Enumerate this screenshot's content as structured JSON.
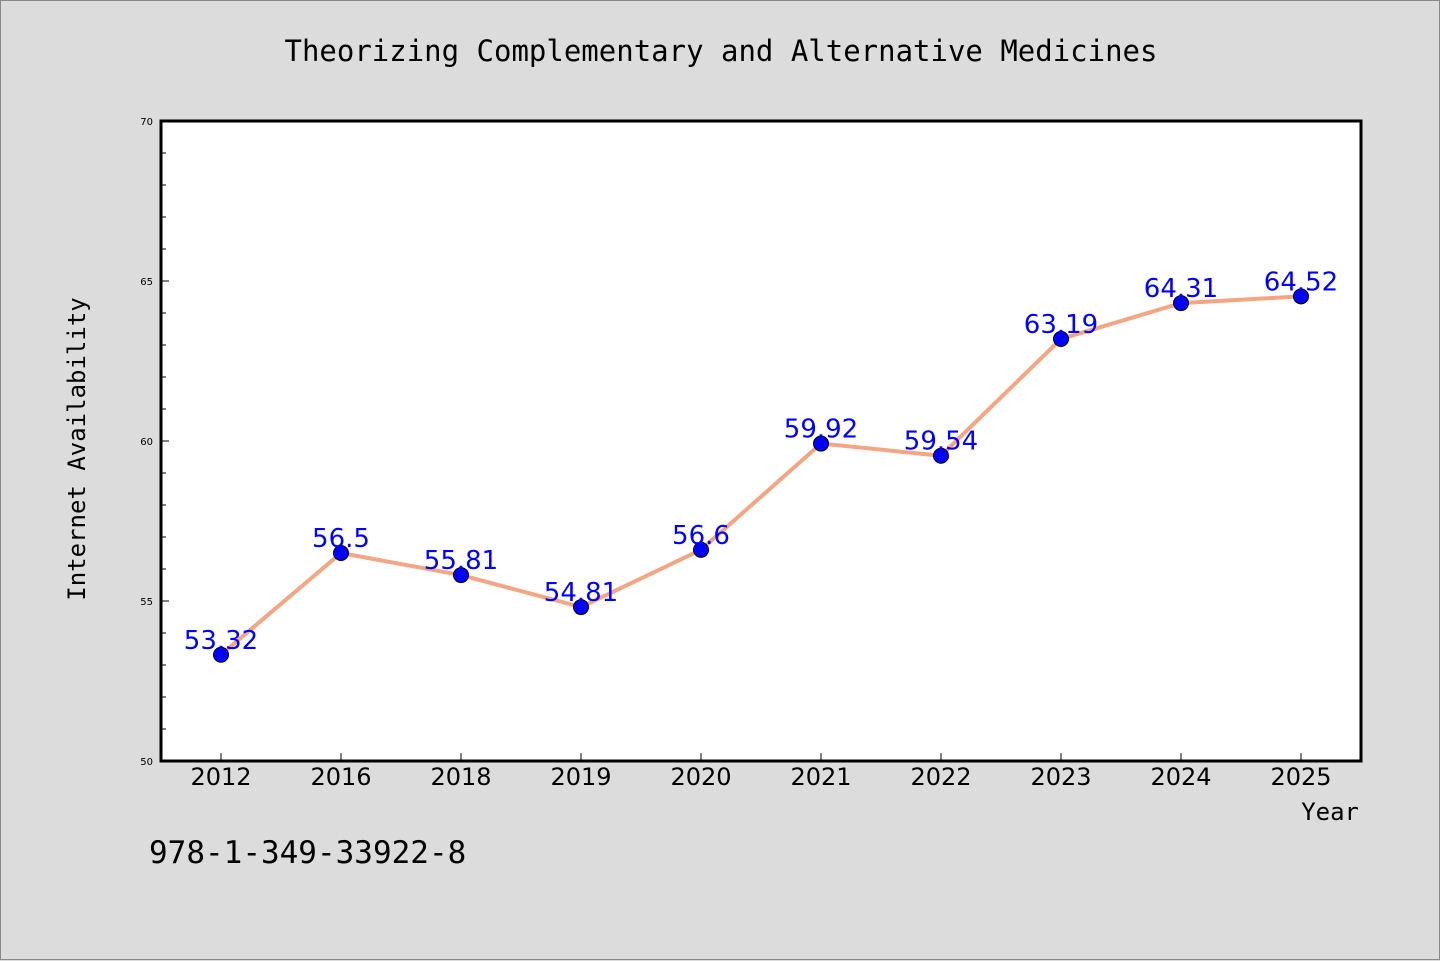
{
  "title": "Theorizing Complementary and Alternative Medicines",
  "footer_text": "978-1-349-33922-8",
  "chart_data": {
    "type": "line",
    "xlabel": "Year",
    "ylabel": "Internet Availability",
    "categories": [
      "2012",
      "2016",
      "2018",
      "2019",
      "2020",
      "2021",
      "2022",
      "2023",
      "2024",
      "2025"
    ],
    "series": [
      {
        "values": [
          53.32,
          56.5,
          55.81,
          54.81,
          56.6,
          59.92,
          59.54,
          63.19,
          64.31,
          64.52
        ],
        "labels": [
          "53.32",
          "56.5",
          "55.81",
          "54.81",
          "56.6",
          "59.92",
          "59.54",
          "63.19",
          "64.31",
          "64.52"
        ]
      }
    ],
    "ylim": [
      50,
      70
    ],
    "yticks": [
      "50",
      "55",
      "60",
      "65",
      "70"
    ],
    "grid": false,
    "line_color": "#f4a582",
    "marker_color": "#0000ff",
    "label_color": "#0000ff",
    "plot_background": "#ffffff",
    "figure_background": "#dcdcdc"
  }
}
